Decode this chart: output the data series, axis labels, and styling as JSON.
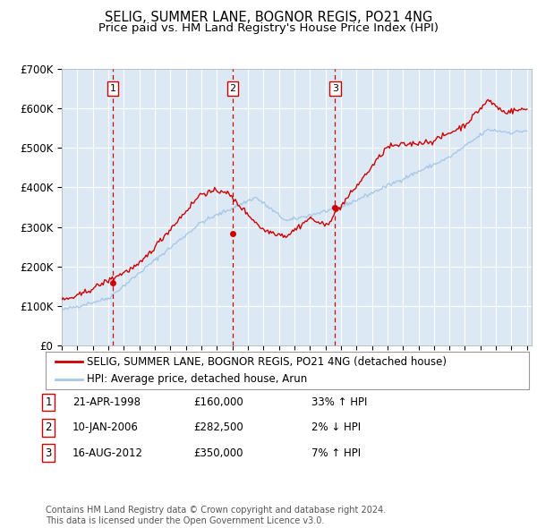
{
  "title": "SELIG, SUMMER LANE, BOGNOR REGIS, PO21 4NG",
  "subtitle": "Price paid vs. HM Land Registry's House Price Index (HPI)",
  "ylim": [
    0,
    700000
  ],
  "yticks": [
    0,
    100000,
    200000,
    300000,
    400000,
    500000,
    600000,
    700000
  ],
  "ytick_labels": [
    "£0",
    "£100K",
    "£200K",
    "£300K",
    "£400K",
    "£500K",
    "£600K",
    "£700K"
  ],
  "plot_bg_color": "#dce9f5",
  "grid_color": "#ffffff",
  "red_color": "#cc0000",
  "blue_color": "#a8c8e8",
  "sale_dates": [
    1998.3,
    2006.03,
    2012.62
  ],
  "sale_prices": [
    160000,
    282500,
    350000
  ],
  "sale_labels": [
    "1",
    "2",
    "3"
  ],
  "sale_info": [
    {
      "label": "1",
      "date": "21-APR-1998",
      "price": "£160,000",
      "pct": "33% ↑ HPI"
    },
    {
      "label": "2",
      "date": "10-JAN-2006",
      "price": "£282,500",
      "pct": "2% ↓ HPI"
    },
    {
      "label": "3",
      "date": "16-AUG-2012",
      "price": "£350,000",
      "pct": "7% ↑ HPI"
    }
  ],
  "legend_line1": "SELIG, SUMMER LANE, BOGNOR REGIS, PO21 4NG (detached house)",
  "legend_line2": "HPI: Average price, detached house, Arun",
  "footer": "Contains HM Land Registry data © Crown copyright and database right 2024.\nThis data is licensed under the Open Government Licence v3.0."
}
